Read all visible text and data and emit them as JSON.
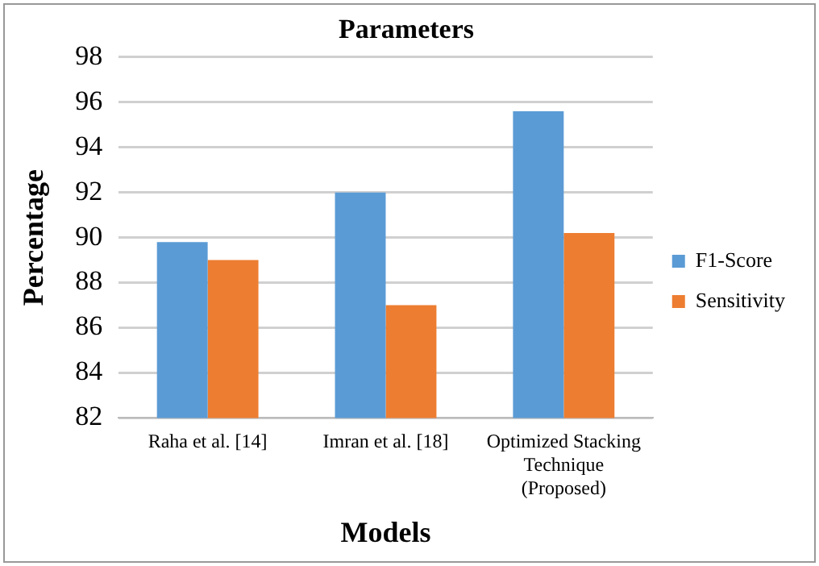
{
  "chart_data": {
    "type": "bar",
    "title": "Parameters",
    "xlabel": "Models",
    "ylabel": "Percentage",
    "categories": [
      "Raha et al. [14]",
      "Imran et al. [18]",
      "Optimized Stacking Technique (Proposed)"
    ],
    "series": [
      {
        "name": "F1-Score",
        "color": "#5b9bd5",
        "values": [
          89.8,
          92.0,
          95.6
        ]
      },
      {
        "name": "Sensitivity",
        "color": "#ed7d31",
        "values": [
          89.0,
          87.0,
          90.2
        ]
      }
    ],
    "ylim": [
      82,
      98
    ],
    "yticks": [
      82,
      84,
      86,
      88,
      90,
      92,
      94,
      96,
      98
    ],
    "grid": "y",
    "legend": "right"
  }
}
